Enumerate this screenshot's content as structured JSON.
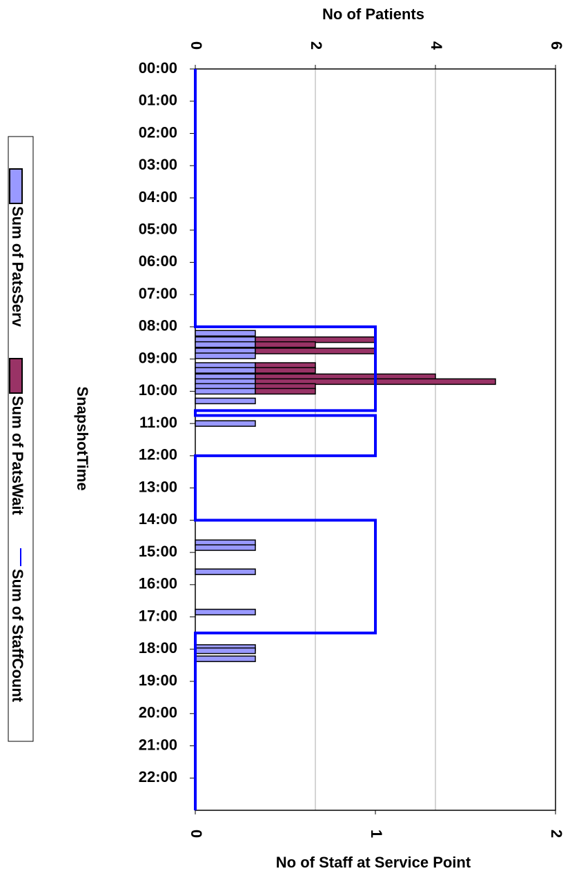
{
  "chart_data": {
    "type": "bar",
    "orientation": "horizontal",
    "stacked": true,
    "x_title": "No of Patients",
    "x2_title": "No of Staff at Service Point",
    "y_title": "SnapshotTime",
    "xlim": [
      0,
      6
    ],
    "xticks": [
      0,
      2,
      4,
      6
    ],
    "x2lim": [
      0,
      2
    ],
    "x2ticks": [
      0,
      1,
      2
    ],
    "grid": true,
    "ylim": [
      0,
      23
    ],
    "yticks": [
      {
        "value": 0,
        "label": "00:00"
      },
      {
        "value": 1,
        "label": "01:00"
      },
      {
        "value": 2,
        "label": "02:00"
      },
      {
        "value": 3,
        "label": "03:00"
      },
      {
        "value": 4,
        "label": "04:00"
      },
      {
        "value": 5,
        "label": "05:00"
      },
      {
        "value": 6,
        "label": "06:00"
      },
      {
        "value": 7,
        "label": "07:00"
      },
      {
        "value": 8,
        "label": "08:00"
      },
      {
        "value": 9,
        "label": "09:00"
      },
      {
        "value": 10,
        "label": "10:00"
      },
      {
        "value": 11,
        "label": "11:00"
      },
      {
        "value": 12,
        "label": "12:00"
      },
      {
        "value": 13,
        "label": "13:00"
      },
      {
        "value": 14,
        "label": "14:00"
      },
      {
        "value": 15,
        "label": "15:00"
      },
      {
        "value": 16,
        "label": "16:00"
      },
      {
        "value": 17,
        "label": "17:00"
      },
      {
        "value": 18,
        "label": "18:00"
      },
      {
        "value": 19,
        "label": "19:00"
      },
      {
        "value": 20,
        "label": "20:00"
      },
      {
        "value": 21,
        "label": "21:00"
      },
      {
        "value": 22,
        "label": "22:00"
      }
    ],
    "snapshot_times": [
      8.2,
      8.4,
      8.55,
      8.75,
      8.9,
      9.2,
      9.35,
      9.55,
      9.7,
      9.85,
      10.0,
      10.3,
      11.0,
      14.7,
      14.85,
      15.6,
      16.85,
      17.95,
      18.05,
      18.3
    ],
    "series": [
      {
        "name": "Sum of PatsServ",
        "color": "#9999ff",
        "values": [
          1,
          1,
          1,
          1,
          1,
          1,
          1,
          1,
          1,
          1,
          1,
          1,
          1,
          1,
          1,
          1,
          1,
          1,
          1,
          1
        ]
      },
      {
        "name": "Sum of PatsWait",
        "color": "#993366",
        "values": [
          0,
          2,
          1,
          2,
          0,
          1,
          1,
          3,
          4,
          1,
          1,
          0,
          0,
          0,
          0,
          0,
          0,
          0,
          0,
          0
        ]
      },
      {
        "name": "Sum of StaffCount",
        "color": "#0000ff",
        "axis": "x2",
        "type": "line",
        "times": [
          0,
          8,
          8,
          10.6,
          10.6,
          10.75,
          10.75,
          12,
          12,
          14,
          14,
          17.5,
          17.5,
          23
        ],
        "values": [
          0,
          0,
          1,
          1,
          0,
          0,
          1,
          1,
          0,
          0,
          1,
          1,
          0,
          0
        ]
      }
    ],
    "legend": "left"
  }
}
